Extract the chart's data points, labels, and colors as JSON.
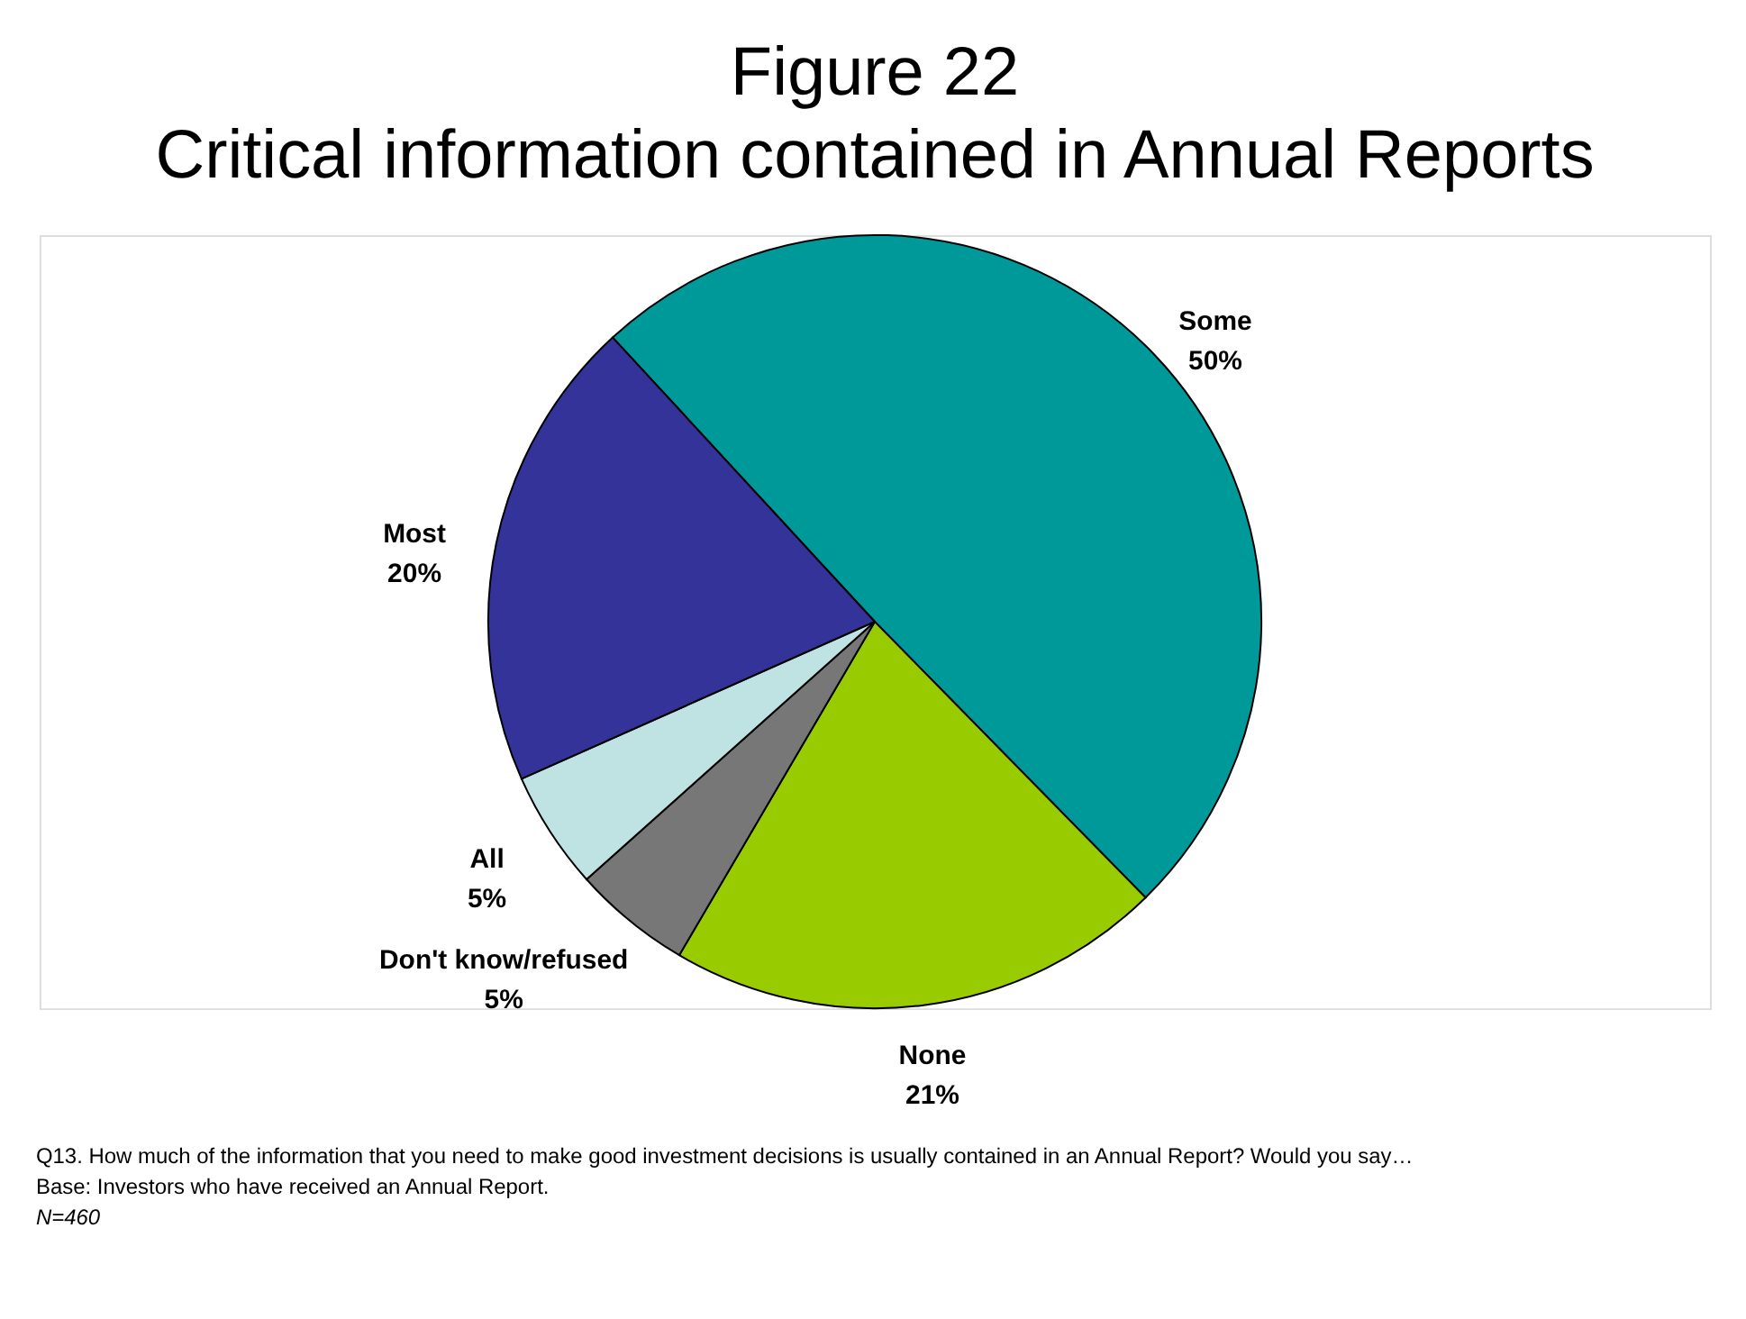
{
  "chart_data": {
    "type": "pie",
    "title": "Figure 22\nCritical information contained in Annual Reports",
    "categories": [
      "Some",
      "None",
      "Don't know/refused",
      "All",
      "Most"
    ],
    "values": [
      50,
      21,
      5,
      5,
      20
    ],
    "value_labels": [
      "50%",
      "21%",
      "5%",
      "5%",
      "20%"
    ],
    "colors": [
      "#009999",
      "#99cc00",
      "#777777",
      "#bfe3e3",
      "#333399"
    ],
    "legend": false,
    "annotations": [
      "Q13. How much of the information that you need to make good investment decisions is usually contained in an Annual Report?  Would you say…",
      "Base: Investors who have received an Annual Report.",
      "N=460"
    ]
  }
}
